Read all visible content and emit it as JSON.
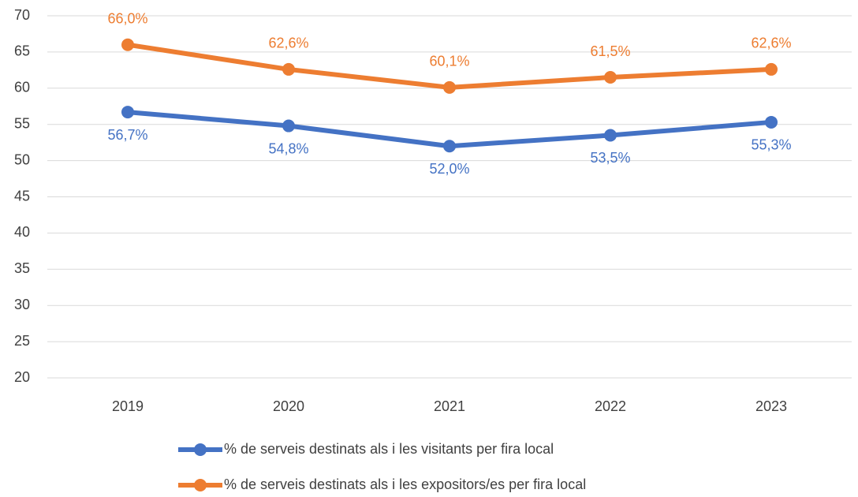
{
  "chart_data": {
    "type": "line",
    "categories": [
      "2019",
      "2020",
      "2021",
      "2022",
      "2023"
    ],
    "series": [
      {
        "name": "% de serveis destinats als i les visitants per fira local",
        "color": "#4472c4",
        "values": [
          56.7,
          54.8,
          52.0,
          53.5,
          55.3
        ],
        "value_labels": [
          "56,7%",
          "54,8%",
          "52,0%",
          "53,5%",
          "55,3%"
        ]
      },
      {
        "name": "% de serveis destinats als i les expositors/es per fira local",
        "color": "#ed7d31",
        "values": [
          66.0,
          62.6,
          60.1,
          61.5,
          62.6
        ],
        "value_labels": [
          "66,0%",
          "62,6%",
          "60,1%",
          "61,5%",
          "62,6%"
        ]
      }
    ],
    "ylim": [
      20,
      70
    ],
    "yticks": [
      20,
      25,
      30,
      35,
      40,
      45,
      50,
      55,
      60,
      65,
      70
    ],
    "grid": true
  }
}
